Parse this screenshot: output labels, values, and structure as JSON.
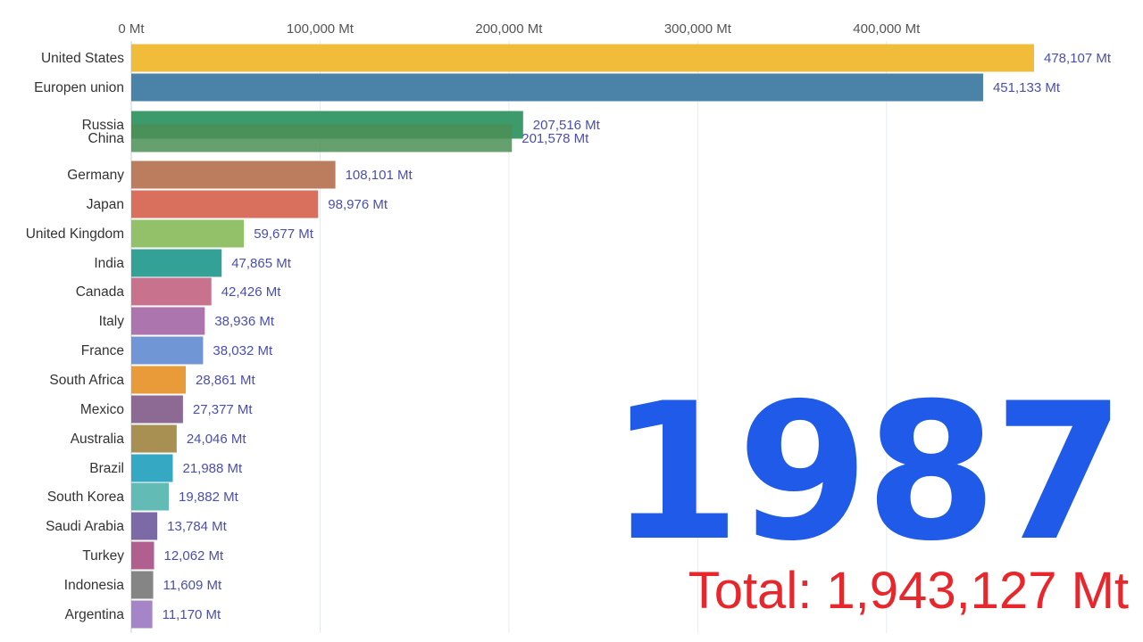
{
  "chart_data": {
    "type": "bar",
    "orientation": "horizontal",
    "axis_ticks": [
      "0 Mt",
      "100,000 Mt",
      "200,000 Mt",
      "300,000 Mt",
      "400,000 Mt"
    ],
    "tick_values": [
      0,
      100000,
      200000,
      300000,
      400000
    ],
    "xlim": [
      0,
      478107
    ],
    "grid": true,
    "categories": [
      "United States",
      "Europen union",
      "Russia",
      "China",
      "Germany",
      "Japan",
      "United Kingdom",
      "India",
      "Canada",
      "Italy",
      "France",
      "South Africa",
      "Mexico",
      "Australia",
      "Brazil",
      "South Korea",
      "Saudi Arabia",
      "Turkey",
      "Indonesia",
      "Argentina"
    ],
    "values": [
      478107,
      451133,
      207516,
      201578,
      108101,
      98976,
      59677,
      47865,
      42426,
      38936,
      38032,
      28861,
      27377,
      24046,
      21988,
      19882,
      13784,
      12062,
      11609,
      11170
    ],
    "value_labels": [
      "478,107 Mt",
      "451,133 Mt",
      "207,516 Mt",
      "201,578 Mt",
      "108,101 Mt",
      "98,976 Mt",
      "59,677 Mt",
      "47,865 Mt",
      "42,426 Mt",
      "38,936 Mt",
      "38,032 Mt",
      "28,861 Mt",
      "27,377 Mt",
      "24,046 Mt",
      "21,988 Mt",
      "19,882 Mt",
      "13,784 Mt",
      "12,062 Mt",
      "11,609 Mt",
      "11,170 Mt"
    ],
    "colors": [
      "#f0bc3a",
      "#4a82a8",
      "#3c9a6b",
      "#4b8f55",
      "#bb7d5e",
      "#d9705e",
      "#92c16a",
      "#34a196",
      "#c8728e",
      "#ad75ad",
      "#7196d6",
      "#e89b38",
      "#8d6a94",
      "#a88f52",
      "#35a8c4",
      "#63bbb6",
      "#7b6aa5",
      "#b15f8e",
      "#858585",
      "#a584c8"
    ],
    "year": "1987",
    "total_label": "Total: 1,943,127 Mt"
  }
}
